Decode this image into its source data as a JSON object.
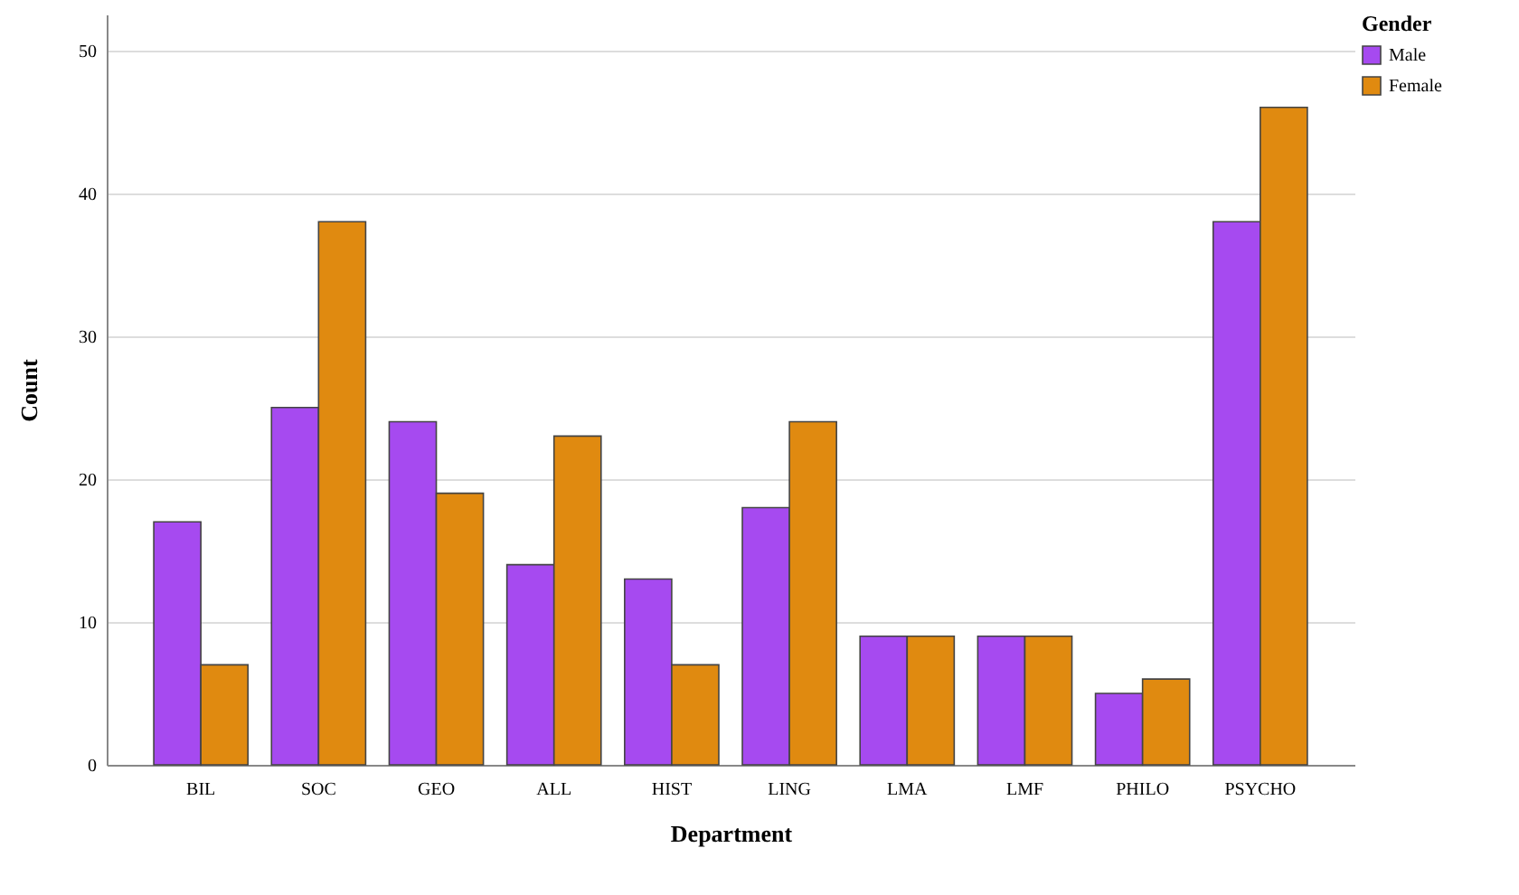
{
  "chart_data": {
    "type": "bar",
    "xlabel": "Department",
    "ylabel": "Count",
    "legend_title": "Gender",
    "categories": [
      "BIL",
      "SOC",
      "GEO",
      "ALL",
      "HIST",
      "LING",
      "LMA",
      "LMF",
      "PHILO",
      "PSYCHO"
    ],
    "series": [
      {
        "name": "Male",
        "color": "#a64af0",
        "values": [
          17,
          25,
          24,
          14,
          13,
          18,
          9,
          9,
          5,
          38
        ]
      },
      {
        "name": "Female",
        "color": "#e08a10",
        "values": [
          7,
          38,
          19,
          23,
          7,
          24,
          9,
          9,
          6,
          46
        ]
      }
    ],
    "ylim": [
      0,
      52.5
    ],
    "yticks": [
      0,
      10,
      20,
      30,
      40,
      50
    ],
    "grid": "y",
    "legend": "top right"
  }
}
